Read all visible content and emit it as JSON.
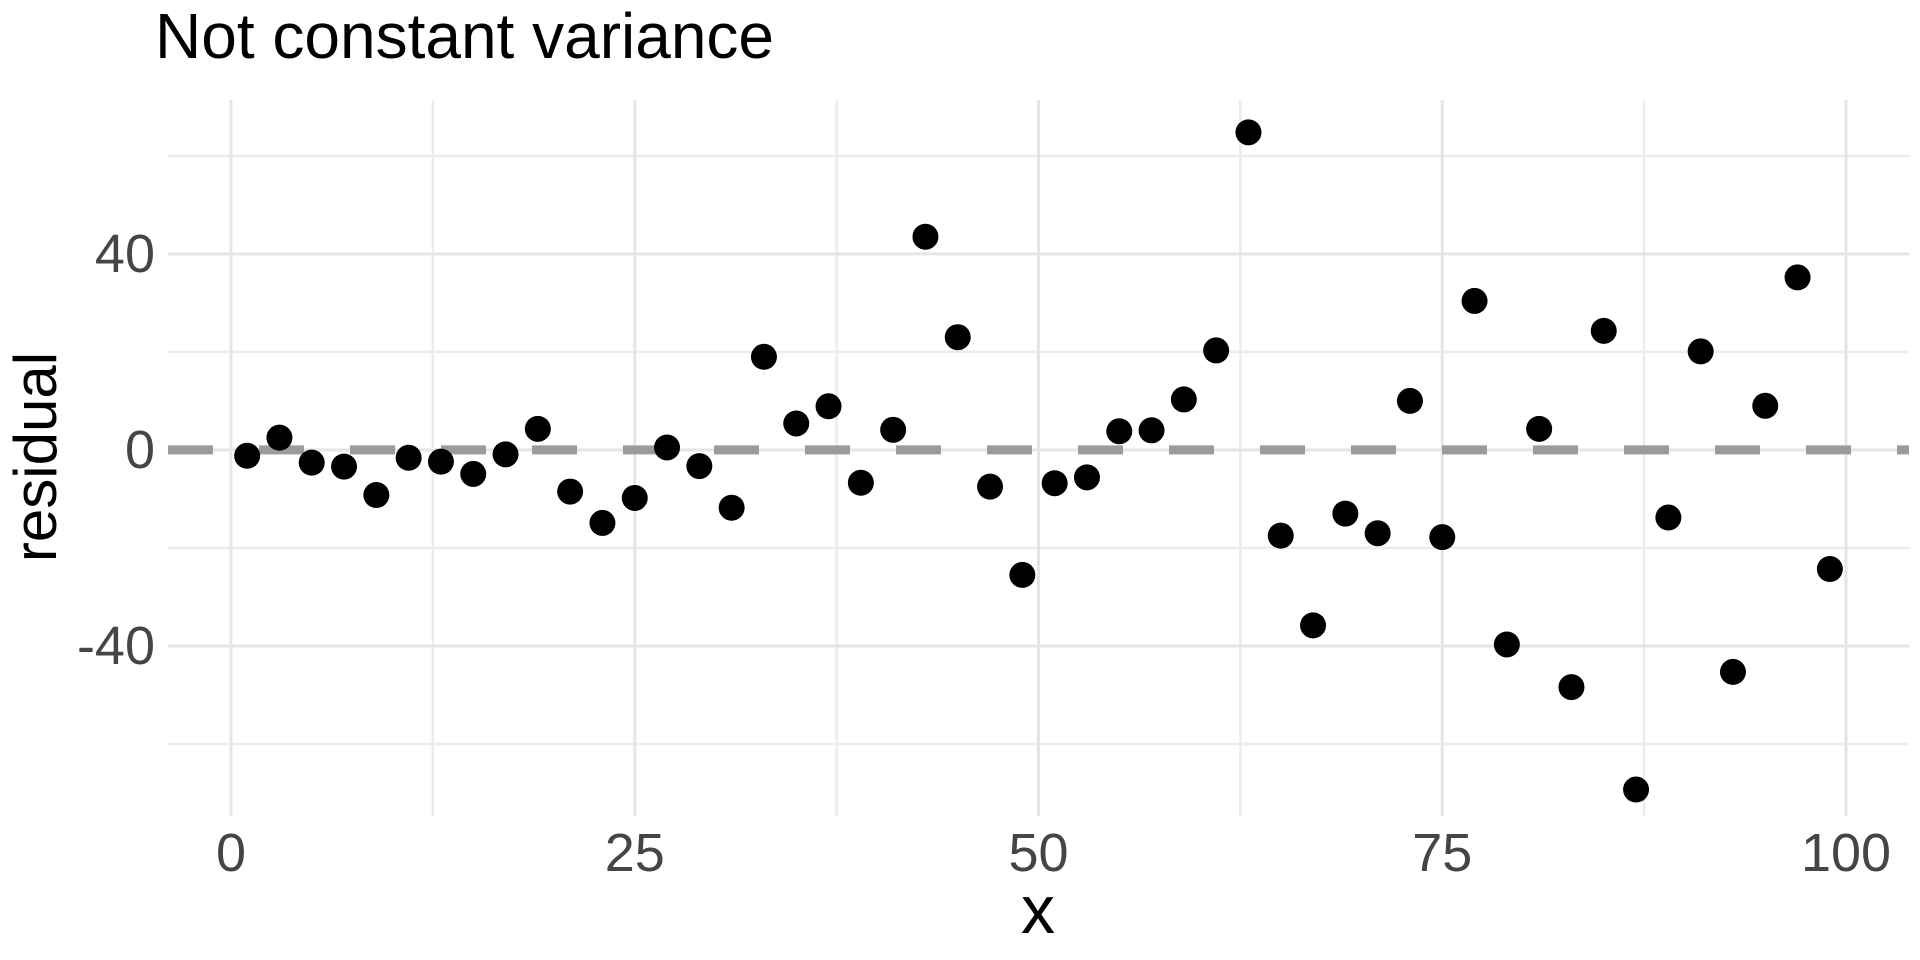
{
  "chart_data": {
    "type": "scatter",
    "title": "Not constant variance",
    "xlabel": "x",
    "ylabel": "residual",
    "x": [
      1,
      3,
      5,
      7,
      9,
      11,
      13,
      15,
      17,
      19,
      21,
      23,
      25,
      27,
      29,
      31,
      33,
      35,
      37,
      39,
      41,
      43,
      45,
      47,
      49,
      51,
      53,
      55,
      57,
      59,
      61,
      63,
      65,
      67,
      69,
      71,
      73,
      75,
      77,
      79,
      81,
      83,
      85,
      87,
      89,
      91,
      93,
      95,
      97,
      99
    ],
    "y": [
      -1.2,
      2.5,
      -2.6,
      -3.4,
      -9.2,
      -1.6,
      -2.4,
      -4.9,
      -0.9,
      4.3,
      -8.5,
      -14.9,
      -9.8,
      0.5,
      -3.3,
      -11.8,
      19,
      5.4,
      8.9,
      -6.7,
      4.1,
      43.5,
      23,
      -7.5,
      -25.5,
      -6.8,
      -5.6,
      3.8,
      4,
      10.3,
      20.3,
      64.8,
      -17.5,
      -35.8,
      -13,
      -17,
      10,
      -17.8,
      30.4,
      -39.7,
      4.3,
      -48.4,
      24.3,
      -69.3,
      -13.8,
      20.1,
      -45.3,
      9,
      35.2,
      -24.3
    ],
    "x_ticks": [
      0,
      25,
      50,
      75,
      100
    ],
    "y_ticks": [
      -40,
      0,
      40
    ],
    "x_minor_ticks": [
      12.5,
      37.5,
      62.5,
      87.5
    ],
    "y_minor_ticks": [
      -60,
      -20,
      20,
      60
    ],
    "xlim": [
      -3.9,
      103.9
    ],
    "ylim": [
      -74.7,
      71.4
    ],
    "grid": true,
    "legend": false,
    "reference_line": {
      "y": 0,
      "style": "dashed"
    },
    "colors": {
      "point": "#000000",
      "reference_line": "#9B9B9B",
      "grid_major": "#E5E5E5",
      "grid_minor": "#ECECEC",
      "axis_text": "#454545",
      "title_text": "#000000",
      "background": "#FFFFFF"
    }
  }
}
